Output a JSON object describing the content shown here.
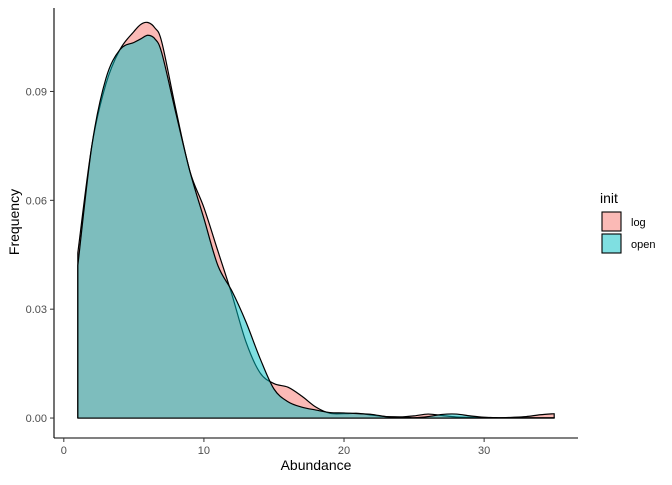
{
  "chart_data": {
    "type": "area",
    "subtype": "density",
    "title": "",
    "xlabel": "Abundance",
    "ylabel": "Frequency",
    "xlim": [
      -0.7,
      36.7
    ],
    "ylim": [
      -0.0055,
      0.113
    ],
    "x_ticks": [
      0,
      10,
      20,
      30
    ],
    "x_tick_labels": [
      "0",
      "10",
      "20",
      "30"
    ],
    "y_ticks": [
      0.0,
      0.03,
      0.06,
      0.09
    ],
    "y_tick_labels": [
      "0.00",
      "0.03",
      "0.06",
      "0.09"
    ],
    "grid": false,
    "legend": {
      "title": "init",
      "position": "right"
    },
    "series": [
      {
        "name": "log",
        "color": "#F8766D",
        "fill_opacity": 0.5,
        "x": [
          1,
          2,
          3,
          4,
          5,
          5.5,
          6,
          6.5,
          7,
          8,
          9,
          10,
          11,
          12,
          13,
          14,
          15,
          16,
          17,
          18,
          19,
          20,
          21,
          22,
          23,
          24,
          25,
          26,
          27,
          28,
          29,
          30,
          31,
          32,
          33,
          34,
          35
        ],
        "y": [
          0.0455,
          0.075,
          0.092,
          0.1015,
          0.1065,
          0.1085,
          0.109,
          0.1075,
          0.1035,
          0.085,
          0.068,
          0.058,
          0.046,
          0.034,
          0.021,
          0.0125,
          0.0095,
          0.0085,
          0.006,
          0.003,
          0.0013,
          0.0012,
          0.0013,
          0.0008,
          0.0004,
          0.0003,
          0.0006,
          0.0011,
          0.0007,
          0.0003,
          0.0002,
          0.0002,
          0.0001,
          0.0002,
          0.0004,
          0.0009,
          0.0012
        ]
      },
      {
        "name": "open",
        "color": "#00BFC4",
        "fill_opacity": 0.5,
        "x": [
          1,
          2,
          3,
          4,
          5,
          5.5,
          6,
          6.5,
          7,
          8,
          9,
          10,
          11,
          12,
          13,
          14,
          15,
          16,
          17,
          18,
          19,
          20,
          21,
          22,
          23,
          24,
          25,
          26,
          27,
          28,
          29,
          30,
          31,
          32,
          33,
          34,
          35
        ],
        "y": [
          0.042,
          0.075,
          0.0935,
          0.1015,
          0.1035,
          0.1045,
          0.1055,
          0.1045,
          0.1005,
          0.084,
          0.068,
          0.055,
          0.042,
          0.035,
          0.0265,
          0.0165,
          0.008,
          0.0045,
          0.003,
          0.0022,
          0.0015,
          0.0014,
          0.0012,
          0.001,
          0.0004,
          0.0003,
          0.0001,
          0.0004,
          0.001,
          0.0011,
          0.0006,
          0.0002,
          0.0001,
          0.0001,
          0.0001,
          0.0001,
          0.0001
        ]
      }
    ]
  }
}
